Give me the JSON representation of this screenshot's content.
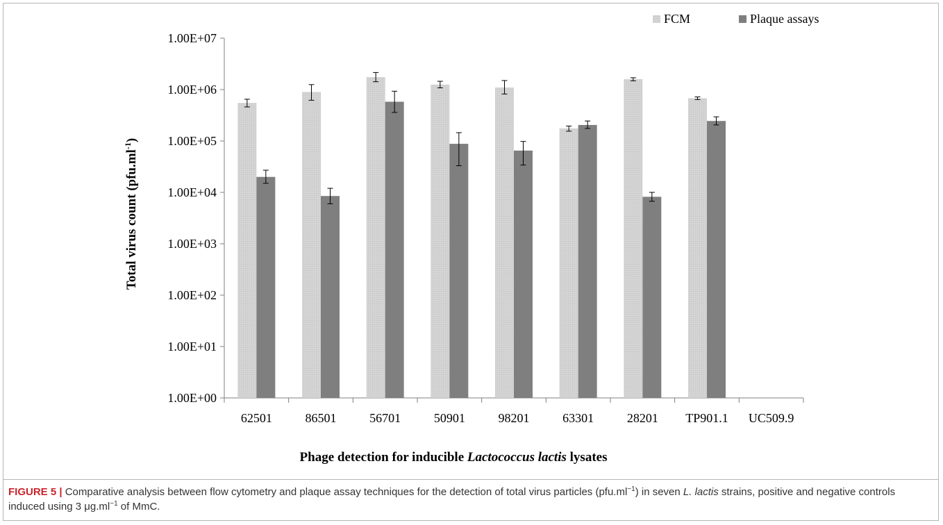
{
  "chart_data": {
    "type": "bar",
    "categories": [
      "62501",
      "86501",
      "56701",
      "50901",
      "98201",
      "63301",
      "28201",
      "TP901.1",
      "UC509.9"
    ],
    "series": [
      {
        "name": "FCM",
        "color": "#d4d4d4",
        "values": [
          550000,
          900000,
          1750000,
          1250000,
          1100000,
          175000,
          1600000,
          680000,
          null
        ],
        "err_low": [
          460000,
          620000,
          1420000,
          1080000,
          820000,
          155000,
          1480000,
          640000,
          null
        ],
        "err_high": [
          650000,
          1250000,
          2150000,
          1450000,
          1500000,
          195000,
          1700000,
          720000,
          null
        ]
      },
      {
        "name": "Plaque assays",
        "color": "#7f7f7f",
        "values": [
          20000,
          8500,
          580000,
          88000,
          65000,
          205000,
          8200,
          245000,
          null
        ],
        "err_low": [
          15000,
          6000,
          360000,
          33000,
          34000,
          175000,
          6700,
          205000,
          null
        ],
        "err_high": [
          27000,
          12000,
          930000,
          145000,
          98000,
          245000,
          10000,
          295000,
          null
        ]
      }
    ],
    "yscale": "log",
    "ylim": [
      1,
      10000000
    ],
    "ytick_labels": [
      "1.00E+00",
      "1.00E+01",
      "1.00E+02",
      "1.00E+03",
      "1.00E+04",
      "1.00E+05",
      "1.00E+06",
      "1.00E+07"
    ],
    "ylabel_main": "Total virus count (pfu.ml",
    "ylabel_sup": "-1",
    "ylabel_close": ")",
    "xlabel_pre": "Phage detection for inducible ",
    "xlabel_italic": "Lactococcus lactis",
    "xlabel_post": " lysates",
    "legend_position": "top-right",
    "grid": false
  },
  "caption": {
    "label": "FIGURE 5 |",
    "text_1": " Comparative analysis between flow cytometry and plaque assay techniques for the detection of total virus particles (pfu.ml",
    "sup_1": "−1",
    "text_2": ") in seven ",
    "italic_1": "L. lactis",
    "text_3": " strains, positive and negative controls induced using 3 μg.ml",
    "sup_2": "−1",
    "text_4": " of MmC."
  }
}
